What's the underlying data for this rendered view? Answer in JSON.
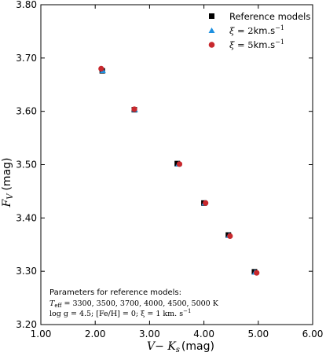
{
  "chart_data": {
    "type": "scatter",
    "xlabel": "V− K",
    "xlabel_sub": "s",
    "xlabel_unit": "(mag)",
    "ylabel": "F",
    "ylabel_sub": "V",
    "ylabel_unit": "(mag)",
    "xlim": [
      1.0,
      6.0
    ],
    "ylim": [
      3.2,
      3.8
    ],
    "xticks": [
      1.0,
      2.0,
      3.0,
      4.0,
      5.0,
      6.0
    ],
    "yticks": [
      3.2,
      3.3,
      3.4,
      3.5,
      3.6,
      3.7,
      3.8
    ],
    "xtick_labels": [
      "1.00",
      "2.00",
      "3.00",
      "4.00",
      "5.00",
      "6.00"
    ],
    "ytick_labels": [
      "3.20",
      "3.30",
      "3.40",
      "3.50",
      "3.60",
      "3.70",
      "3.80"
    ],
    "grid": false,
    "legend_position": "top-right",
    "series": [
      {
        "name": "Reference models",
        "marker": "square",
        "color": "#000000",
        "x": [
          2.13,
          2.72,
          3.51,
          4.0,
          4.45,
          4.93
        ],
        "y": [
          3.676,
          3.603,
          3.502,
          3.428,
          3.368,
          3.299
        ]
      },
      {
        "name_prefix": "ξ",
        "name_value": " = 2",
        "name_unit": "km.s",
        "name_exp": "−1",
        "marker": "triangle",
        "color": "#1e90e0",
        "x": [
          2.14,
          2.73,
          3.53,
          4.01,
          4.46,
          4.94
        ],
        "y": [
          3.676,
          3.603,
          3.501,
          3.428,
          3.367,
          3.298
        ]
      },
      {
        "name_prefix": "ξ",
        "name_value": " = 5",
        "name_unit": "km.s",
        "name_exp": "−1",
        "marker": "circle",
        "color": "#c8282d",
        "x": [
          2.11,
          2.72,
          3.55,
          4.03,
          4.48,
          4.97
        ],
        "y": [
          3.68,
          3.604,
          3.501,
          3.428,
          3.366,
          3.297
        ]
      }
    ],
    "annotation": {
      "line1": "Parameters for reference models:",
      "line2_pre": "T",
      "line2_sub": "eff",
      "line2_post": " = 3300, 3500, 3700, 4000, 4500, 5000 K",
      "line3": "log g = 4.5;  [Fe/H] = 0;  ξ = 1 km. s",
      "line3_exp": "−1"
    }
  }
}
